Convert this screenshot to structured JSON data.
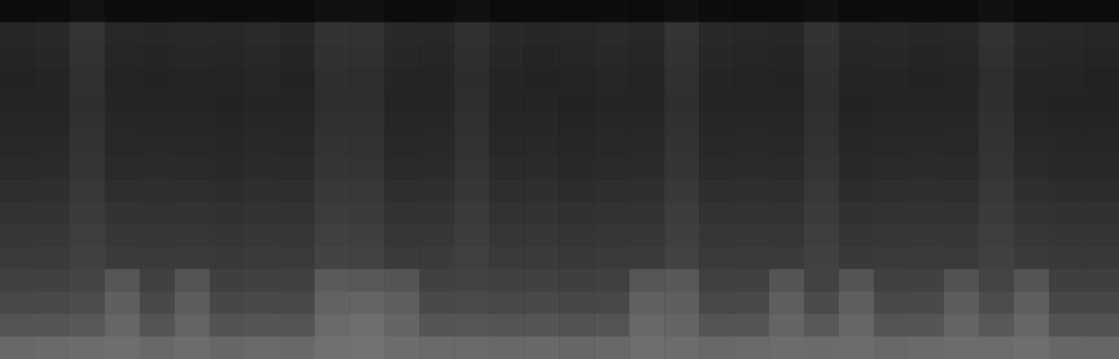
{
  "chart_data": {
    "type": "heatmap",
    "tick_labels": false,
    "grid": false,
    "zlim": [
      0,
      255
    ],
    "cells": [
      [
        12,
        13,
        18,
        13,
        12,
        13,
        12,
        13,
        12,
        17,
        17,
        12,
        13,
        16,
        12,
        13,
        12,
        13,
        12,
        17,
        13,
        12,
        13,
        16,
        12,
        13,
        12,
        13,
        17,
        12,
        13,
        12
      ],
      [
        38,
        41,
        52,
        40,
        39,
        41,
        40,
        42,
        39,
        51,
        50,
        41,
        40,
        49,
        41,
        39,
        40,
        42,
        40,
        52,
        41,
        40,
        39,
        51,
        40,
        41,
        39,
        40,
        50,
        41,
        40,
        38
      ],
      [
        37,
        39,
        50,
        38,
        37,
        39,
        38,
        40,
        37,
        49,
        48,
        39,
        38,
        47,
        39,
        37,
        38,
        40,
        38,
        50,
        39,
        38,
        37,
        49,
        38,
        39,
        37,
        38,
        48,
        39,
        38,
        36
      ],
      [
        35,
        37,
        48,
        36,
        35,
        37,
        36,
        38,
        35,
        47,
        46,
        37,
        36,
        45,
        37,
        35,
        36,
        38,
        36,
        48,
        37,
        36,
        35,
        47,
        36,
        37,
        35,
        36,
        46,
        37,
        36,
        34
      ],
      [
        36,
        36,
        47,
        37,
        36,
        36,
        35,
        37,
        36,
        46,
        47,
        36,
        37,
        46,
        36,
        36,
        35,
        37,
        37,
        47,
        36,
        37,
        36,
        46,
        35,
        36,
        36,
        37,
        47,
        36,
        35,
        35
      ],
      [
        38,
        38,
        49,
        39,
        38,
        38,
        37,
        39,
        38,
        48,
        49,
        38,
        39,
        48,
        38,
        38,
        37,
        39,
        39,
        49,
        38,
        39,
        38,
        48,
        37,
        38,
        38,
        39,
        49,
        38,
        37,
        37
      ],
      [
        40,
        41,
        51,
        40,
        41,
        40,
        39,
        41,
        40,
        51,
        50,
        40,
        41,
        50,
        40,
        41,
        39,
        40,
        41,
        51,
        40,
        41,
        40,
        50,
        39,
        40,
        41,
        40,
        51,
        41,
        39,
        39
      ],
      [
        42,
        43,
        53,
        42,
        43,
        42,
        41,
        43,
        42,
        53,
        52,
        42,
        43,
        52,
        42,
        43,
        41,
        42,
        43,
        53,
        42,
        43,
        42,
        52,
        41,
        42,
        43,
        42,
        53,
        43,
        41,
        41
      ],
      [
        46,
        47,
        56,
        46,
        47,
        46,
        45,
        47,
        46,
        57,
        56,
        46,
        47,
        55,
        46,
        47,
        45,
        46,
        47,
        56,
        46,
        47,
        46,
        56,
        45,
        46,
        47,
        46,
        56,
        47,
        45,
        45
      ],
      [
        50,
        51,
        59,
        51,
        50,
        51,
        49,
        51,
        50,
        60,
        59,
        50,
        51,
        58,
        50,
        51,
        49,
        50,
        51,
        60,
        50,
        51,
        50,
        59,
        49,
        50,
        51,
        50,
        59,
        51,
        49,
        49
      ],
      [
        54,
        55,
        62,
        55,
        54,
        55,
        53,
        55,
        54,
        64,
        63,
        54,
        55,
        61,
        54,
        55,
        53,
        54,
        55,
        63,
        54,
        55,
        54,
        62,
        53,
        54,
        55,
        54,
        62,
        55,
        53,
        53
      ],
      [
        58,
        59,
        65,
        59,
        58,
        59,
        57,
        59,
        58,
        67,
        66,
        58,
        59,
        64,
        58,
        59,
        57,
        58,
        59,
        66,
        58,
        59,
        58,
        65,
        57,
        58,
        59,
        58,
        65,
        59,
        57,
        57
      ],
      [
        64,
        65,
        68,
        86,
        64,
        84,
        63,
        65,
        64,
        90,
        88,
        85,
        65,
        66,
        64,
        65,
        63,
        64,
        86,
        88,
        64,
        65,
        85,
        66,
        84,
        64,
        65,
        83,
        68,
        85,
        63,
        63
      ],
      [
        72,
        73,
        76,
        95,
        72,
        93,
        71,
        73,
        72,
        98,
        100,
        94,
        73,
        74,
        72,
        73,
        71,
        72,
        96,
        94,
        72,
        73,
        94,
        75,
        95,
        72,
        73,
        93,
        76,
        95,
        71,
        71
      ],
      [
        84,
        85,
        88,
        102,
        84,
        100,
        83,
        85,
        84,
        106,
        110,
        101,
        85,
        86,
        84,
        85,
        83,
        84,
        104,
        100,
        84,
        85,
        101,
        88,
        102,
        84,
        85,
        100,
        88,
        102,
        83,
        83
      ],
      [
        104,
        106,
        108,
        110,
        104,
        108,
        103,
        106,
        104,
        112,
        114,
        108,
        106,
        106,
        104,
        105,
        103,
        104,
        110,
        108,
        104,
        106,
        108,
        107,
        108,
        104,
        106,
        108,
        108,
        110,
        103,
        102
      ]
    ]
  }
}
